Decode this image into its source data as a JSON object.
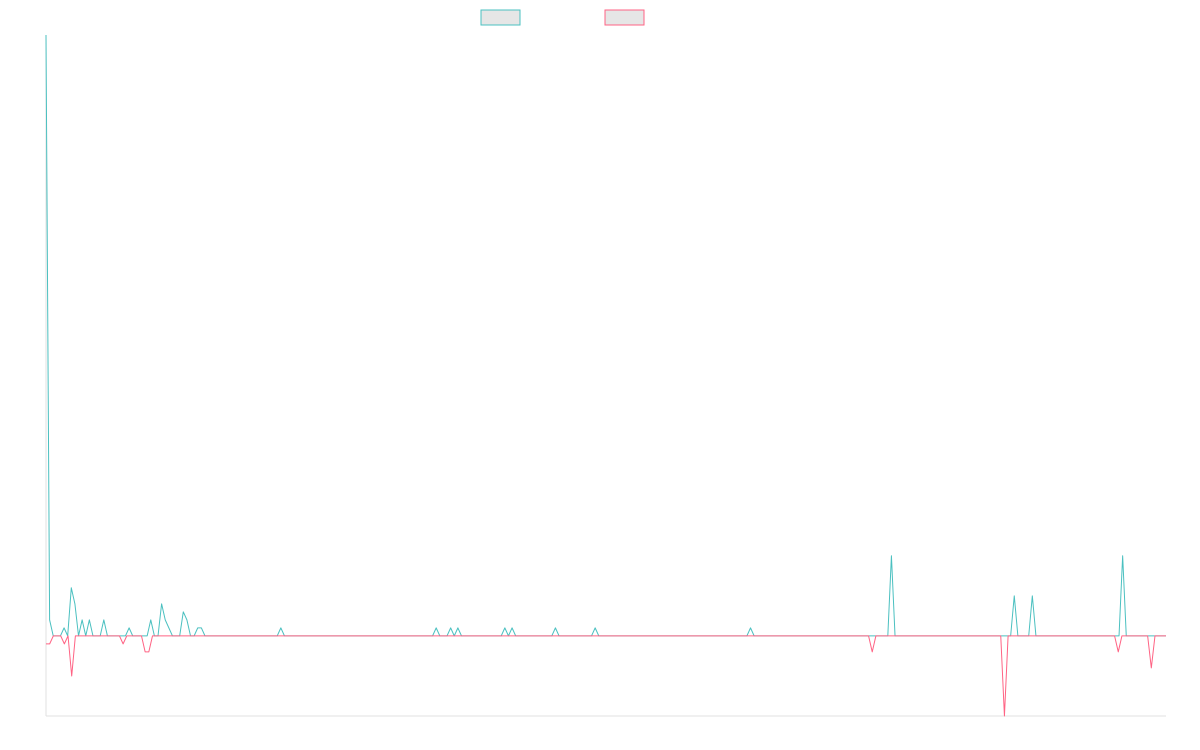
{
  "chart_data": {
    "type": "line",
    "title": "",
    "xlabel": "",
    "ylabel": "",
    "ylim": [
      -10,
      75
    ],
    "grid": false,
    "legend": {
      "placement": "top-center"
    },
    "series": [
      {
        "name": "",
        "color": "#4bc0c0",
        "values": [
          75,
          2,
          0,
          0,
          0,
          1,
          0,
          6,
          4,
          0,
          2,
          0,
          2,
          0,
          0,
          0,
          2,
          0,
          0,
          0,
          0,
          0,
          0,
          1,
          0,
          0,
          0,
          0,
          0,
          2,
          0,
          0,
          4,
          2,
          1,
          0,
          0,
          0,
          3,
          2,
          0,
          0,
          1,
          1,
          0,
          0,
          0,
          0,
          0,
          0,
          0,
          0,
          0,
          0,
          0,
          0,
          0,
          0,
          0,
          0,
          0,
          0,
          0,
          0,
          0,
          1,
          0,
          0,
          0,
          0,
          0,
          0,
          0,
          0,
          0,
          0,
          0,
          0,
          0,
          0,
          0,
          0,
          0,
          0,
          0,
          0,
          0,
          0,
          0,
          0,
          0,
          0,
          0,
          0,
          0,
          0,
          0,
          0,
          0,
          0,
          0,
          0,
          0,
          0,
          0,
          0,
          0,
          0,
          1,
          0,
          0,
          0,
          1,
          0,
          1,
          0,
          0,
          0,
          0,
          0,
          0,
          0,
          0,
          0,
          0,
          0,
          0,
          1,
          0,
          1,
          0,
          0,
          0,
          0,
          0,
          0,
          0,
          0,
          0,
          0,
          0,
          1,
          0,
          0,
          0,
          0,
          0,
          0,
          0,
          0,
          0,
          0,
          1,
          0,
          0,
          0,
          0,
          0,
          0,
          0,
          0,
          0,
          0,
          0,
          0,
          0,
          0,
          0,
          0,
          0,
          0,
          0,
          0,
          0,
          0,
          0,
          0,
          0,
          0,
          0,
          0,
          0,
          0,
          0,
          0,
          0,
          0,
          0,
          0,
          0,
          0,
          0,
          0,
          0,
          0,
          1,
          0,
          0,
          0,
          0,
          0,
          0,
          0,
          0,
          0,
          0,
          0,
          0,
          0,
          0,
          0,
          0,
          0,
          0,
          0,
          0,
          0,
          0,
          0,
          0,
          0,
          0,
          0,
          0,
          0,
          0,
          0,
          0,
          0,
          0,
          0,
          0,
          0,
          0,
          10,
          0,
          0,
          0,
          0,
          0,
          0,
          0,
          0,
          0,
          0,
          0,
          0,
          0,
          0,
          0,
          0,
          0,
          0,
          0,
          0,
          0,
          0,
          0,
          0,
          0,
          0,
          0,
          0,
          0,
          0,
          0,
          0,
          0,
          5,
          0,
          0,
          0,
          0,
          5,
          0,
          0,
          0,
          0,
          0,
          0,
          0,
          0,
          0,
          0,
          0,
          0,
          0,
          0,
          0,
          0,
          0,
          0,
          0,
          0,
          0,
          0,
          0,
          0,
          10,
          0,
          0,
          0,
          0,
          0,
          0,
          0,
          0,
          0,
          0,
          0,
          0
        ]
      },
      {
        "name": "",
        "color": "#ff6384",
        "values": [
          -1,
          -1,
          0,
          0,
          0,
          -1,
          0,
          -5,
          0,
          0,
          0,
          0,
          0,
          0,
          0,
          0,
          0,
          0,
          0,
          0,
          0,
          -1,
          0,
          0,
          0,
          0,
          0,
          -2,
          -2,
          0,
          0,
          0,
          0,
          0,
          0,
          0,
          0,
          0,
          0,
          0,
          0,
          0,
          0,
          0,
          0,
          0,
          0,
          0,
          0,
          0,
          0,
          0,
          0,
          0,
          0,
          0,
          0,
          0,
          0,
          0,
          0,
          0,
          0,
          0,
          0,
          0,
          0,
          0,
          0,
          0,
          0,
          0,
          0,
          0,
          0,
          0,
          0,
          0,
          0,
          0,
          0,
          0,
          0,
          0,
          0,
          0,
          0,
          0,
          0,
          0,
          0,
          0,
          0,
          0,
          0,
          0,
          0,
          0,
          0,
          0,
          0,
          0,
          0,
          0,
          0,
          0,
          0,
          0,
          0,
          0,
          0,
          0,
          0,
          0,
          0,
          0,
          0,
          0,
          0,
          0,
          0,
          0,
          0,
          0,
          0,
          0,
          0,
          0,
          0,
          0,
          0,
          0,
          0,
          0,
          0,
          0,
          0,
          0,
          0,
          0,
          0,
          0,
          0,
          0,
          0,
          0,
          0,
          0,
          0,
          0,
          0,
          0,
          0,
          0,
          0,
          0,
          0,
          0,
          0,
          0,
          0,
          0,
          0,
          0,
          0,
          0,
          0,
          0,
          0,
          0,
          0,
          0,
          0,
          0,
          0,
          0,
          0,
          0,
          0,
          0,
          0,
          0,
          0,
          0,
          0,
          0,
          0,
          0,
          0,
          0,
          0,
          0,
          0,
          0,
          0,
          0,
          0,
          0,
          0,
          0,
          0,
          0,
          0,
          0,
          0,
          0,
          0,
          0,
          0,
          0,
          0,
          0,
          0,
          0,
          0,
          0,
          0,
          0,
          0,
          0,
          0,
          0,
          0,
          0,
          0,
          -2,
          0,
          0,
          0,
          0,
          0,
          0,
          0,
          0,
          0,
          0,
          0,
          0,
          0,
          0,
          0,
          0,
          0,
          0,
          0,
          0,
          0,
          0,
          0,
          0,
          0,
          0,
          0,
          0,
          0,
          0,
          0,
          0,
          0,
          0,
          0,
          -10,
          0,
          0,
          0,
          0,
          0,
          0,
          0,
          0,
          0,
          0,
          0,
          0,
          0,
          0,
          0,
          0,
          0,
          0,
          0,
          0,
          0,
          0,
          0,
          0,
          0,
          0,
          0,
          0,
          0,
          0,
          -2,
          0,
          0,
          0,
          0,
          0,
          0,
          0,
          0,
          -4,
          0,
          0,
          0,
          0
        ]
      }
    ]
  }
}
